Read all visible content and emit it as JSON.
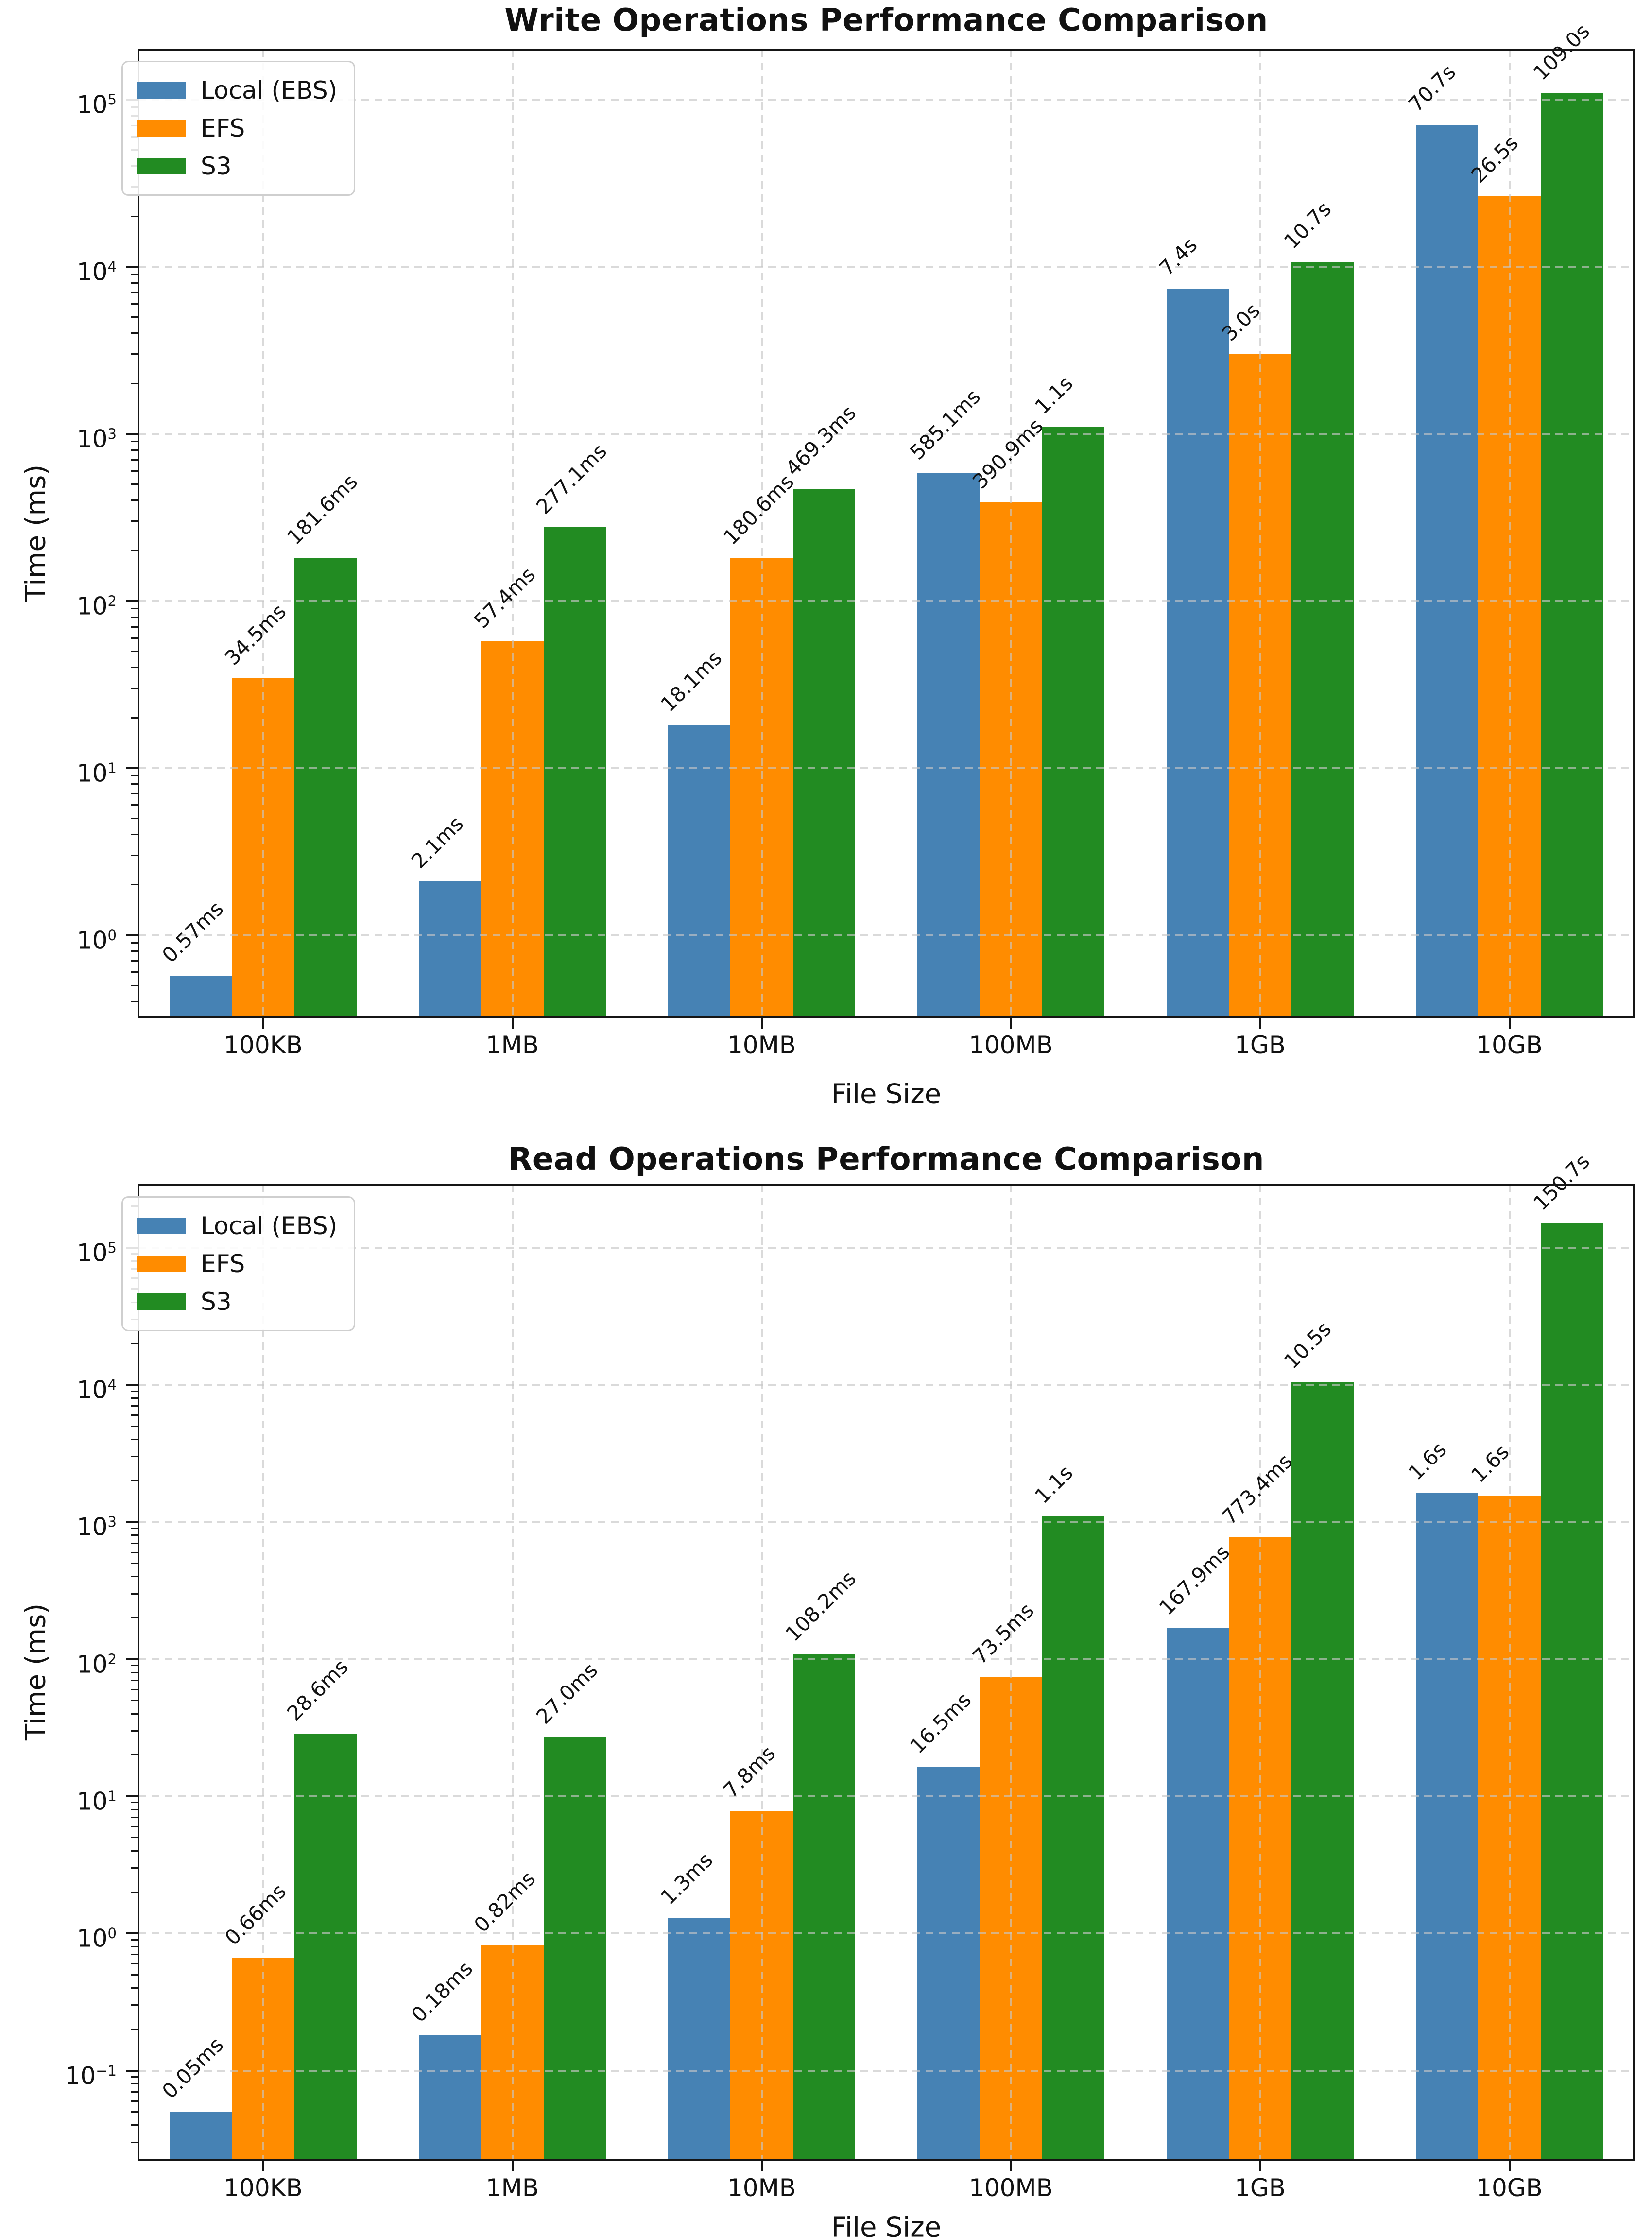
{
  "figure": {
    "background": "#ffffff",
    "text_color": "#111111",
    "grid_color": "#c6c6c6",
    "spine_color": "#151515"
  },
  "chart_data": {
    "note": "two stacked log-scale grouped bar charts",
    "charts_ref": "see charts array"
  },
  "charts": [
    {
      "type": "bar",
      "title": "Write Operations Performance Comparison",
      "xlabel": "File Size",
      "ylabel": "Time (ms)",
      "yscale": "log",
      "ylog_range": [
        -0.49,
        5.3
      ],
      "ytick_exponents": [
        0,
        1,
        2,
        3,
        4,
        5
      ],
      "grid": {
        "horizontal": true,
        "vertical": true,
        "style": "dashed",
        "above_bars": true
      },
      "legend_position": "upper left",
      "categories": [
        "100KB",
        "1MB",
        "10MB",
        "100MB",
        "1GB",
        "10GB"
      ],
      "series": [
        {
          "name": "Local (EBS)",
          "color": "#4682B4",
          "values_ms": [
            0.57,
            2.1,
            18.1,
            585.1,
            7400,
            70700
          ],
          "labels": [
            "0.57ms",
            "2.1ms",
            "18.1ms",
            "585.1ms",
            "7.4s",
            "70.7s"
          ]
        },
        {
          "name": "EFS",
          "color": "#FF8C00",
          "values_ms": [
            34.5,
            57.4,
            180.6,
            390.9,
            3000,
            26500
          ],
          "labels": [
            "34.5ms",
            "57.4ms",
            "180.6ms",
            "390.9ms",
            "3.0s",
            "26.5s"
          ]
        },
        {
          "name": "S3",
          "color": "#228B22",
          "values_ms": [
            181.6,
            277.1,
            469.3,
            1100,
            10700,
            109000
          ],
          "labels": [
            "181.6ms",
            "277.1ms",
            "469.3ms",
            "1.1s",
            "10.7s",
            "109.0s"
          ]
        }
      ]
    },
    {
      "type": "bar",
      "title": "Read Operations Performance Comparison",
      "xlabel": "File Size",
      "ylabel": "Time (ms)",
      "yscale": "log",
      "ylog_range": [
        -1.65,
        5.46
      ],
      "ytick_exponents": [
        -1,
        0,
        1,
        2,
        3,
        4,
        5
      ],
      "grid": {
        "horizontal": true,
        "vertical": true,
        "style": "dashed",
        "above_bars": true
      },
      "legend_position": "upper left",
      "categories": [
        "100KB",
        "1MB",
        "10MB",
        "100MB",
        "1GB",
        "10GB"
      ],
      "series": [
        {
          "name": "Local (EBS)",
          "color": "#4682B4",
          "values_ms": [
            0.05,
            0.18,
            1.3,
            16.5,
            167.9,
            1620
          ],
          "labels": [
            "0.05ms",
            "0.18ms",
            "1.3ms",
            "16.5ms",
            "167.9ms",
            "1.6s"
          ]
        },
        {
          "name": "EFS",
          "color": "#FF8C00",
          "values_ms": [
            0.66,
            0.82,
            7.8,
            73.5,
            773.4,
            1560
          ],
          "labels": [
            "0.66ms",
            "0.82ms",
            "7.8ms",
            "73.5ms",
            "773.4ms",
            "1.6s"
          ]
        },
        {
          "name": "S3",
          "color": "#228B22",
          "values_ms": [
            28.6,
            27.0,
            108.2,
            1100,
            10500,
            150700
          ],
          "labels": [
            "28.6ms",
            "27.0ms",
            "108.2ms",
            "1.1s",
            "10.5s",
            "150.7s"
          ]
        }
      ]
    }
  ]
}
